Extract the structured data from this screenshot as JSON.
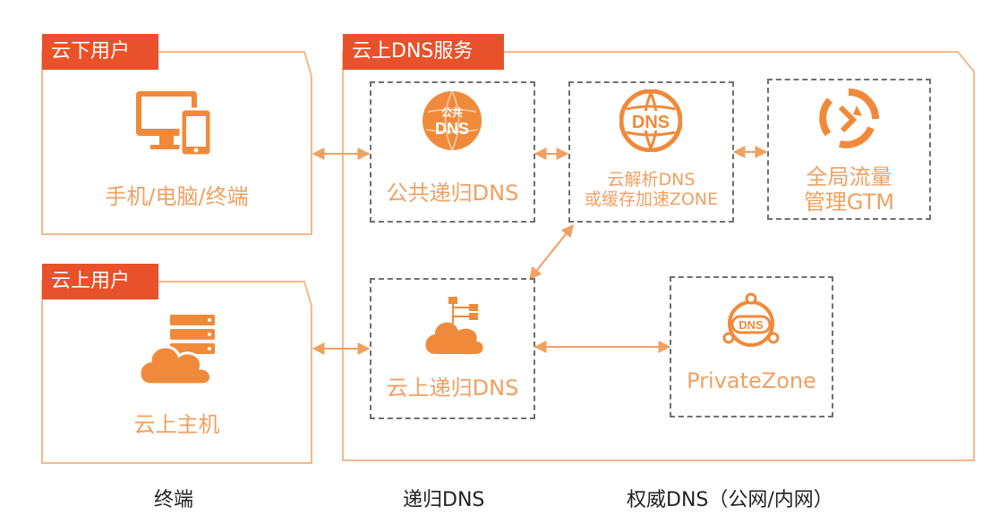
{
  "groups": {
    "offcloud_users": {
      "title": "云下用户",
      "device_label": "手机/电脑/终端"
    },
    "oncloud_users": {
      "title": "云上用户",
      "host_label": "云上主机"
    },
    "cloud_dns_service": {
      "title": "云上DNS服务"
    }
  },
  "nodes": {
    "public_recursive": {
      "label": "公共递归DNS",
      "icon_text_top": "公共",
      "icon_text_bottom": "DNS"
    },
    "cloud_resolve": {
      "label_line1": "云解析DNS",
      "label_line2": "或缓存加速ZONE",
      "icon_text": "DNS"
    },
    "gtm": {
      "label_line1": "全局流量",
      "label_line2": "管理GTM"
    },
    "cloud_recursive": {
      "label": "云上递归DNS"
    },
    "private_zone": {
      "label": "PrivateZone",
      "icon_text": "DNS"
    }
  },
  "footer": {
    "terminal": "终端",
    "recursive": "递归DNS",
    "authoritative": "权威DNS（公网/内网）"
  },
  "colors": {
    "accent": "#e8512a",
    "orange": "#f0a062",
    "icon": "#f08a3a",
    "dash": "#6f6f6f"
  }
}
